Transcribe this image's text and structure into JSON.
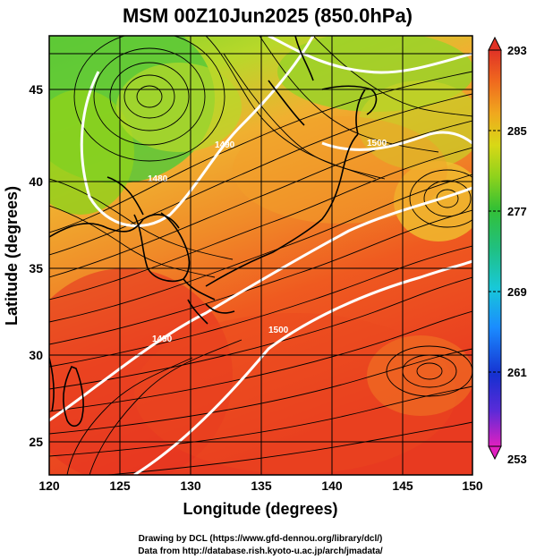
{
  "title": "MSM 00Z10Jun2025 (850.0hPa)",
  "x_axis": {
    "label": "Longitude (degrees)",
    "range": [
      120,
      150
    ],
    "ticks": [
      "120",
      "125",
      "130",
      "135",
      "140",
      "145",
      "150"
    ]
  },
  "y_axis": {
    "label": "Latitude (degrees)",
    "range": [
      22.6,
      47.6
    ],
    "ticks": [
      "25",
      "30",
      "35",
      "40",
      "45"
    ]
  },
  "colorbar": {
    "min": 253,
    "max": 293,
    "ticks": [
      "293",
      "285",
      "277",
      "269",
      "261",
      "253"
    ],
    "colors": [
      "#e020c0",
      "#5a2bd8",
      "#1630d0",
      "#1a8cff",
      "#18c8d8",
      "#20c080",
      "#34c034",
      "#8ed21c",
      "#d8d816",
      "#f0a81e",
      "#f06a1e",
      "#e03226"
    ]
  },
  "contour_labels": [
    "1500",
    "1490",
    "1490",
    "1480",
    "1500"
  ],
  "credits": {
    "line1": "Drawing by DCL (https://www.gfd-dennou.org/library/dcl/)",
    "line2": "Data from http://database.rish.kyoto-u.ac.jp/arch/jmadata/"
  }
}
